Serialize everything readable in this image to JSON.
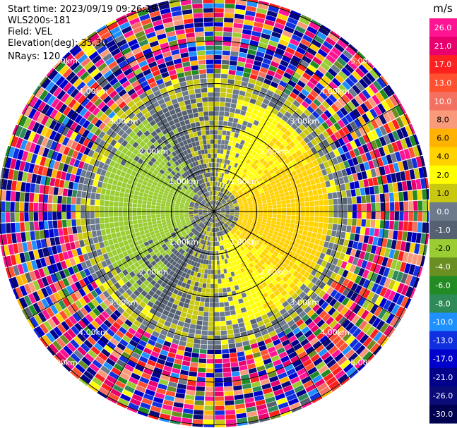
{
  "header": {
    "start_time": "Start time: 2023/09/19 09:26:29",
    "instrument": "WLS200s-181",
    "field": "Field: VEL",
    "elevation": "Elevation(deg): 35.30",
    "nrays": "NRays: 120"
  },
  "colorbar": {
    "unit": "m/s",
    "tick_labels": [
      "26.0",
      "21.0",
      "17.0",
      "13.0",
      "10.0",
      "8.0",
      "6.0",
      "4.0",
      "2.0",
      "1.0",
      "0.0",
      "-1.0",
      "-2.0",
      "-4.0",
      "-6.0",
      "-8.0",
      "-10.0",
      "-13.0",
      "-17.0",
      "-21.0",
      "-26.0",
      "-30.0"
    ],
    "colors": [
      "#ff1493",
      "#e8006c",
      "#ff2020",
      "#ff5030",
      "#f47060",
      "#f99a7a",
      "#ffb300",
      "#ffd200",
      "#ffff00",
      "#c8c810",
      "#6c7a8c",
      "#556070",
      "#9acd32",
      "#6b8e23",
      "#228b22",
      "#2e8b57",
      "#1e90ff",
      "#1030e0",
      "#0000cd",
      "#00008b",
      "#0a0a78",
      "#000050"
    ]
  },
  "chart_data": {
    "type": "heatmap",
    "projection": "polar PPI",
    "field": "VEL",
    "units": "m/s",
    "nrays": 120,
    "vmin": -30.0,
    "vmax": 26.0,
    "range_rings_km": [
      1.0,
      2.0,
      3.0,
      4.0,
      5.0
    ],
    "range_ring_labels": [
      "1.00km",
      "2.00km",
      "3.00km",
      "4.00km",
      "5.00km"
    ],
    "radial_lines_deg": [
      0,
      30,
      60,
      90,
      120,
      150,
      180,
      210,
      240,
      270,
      300,
      330
    ],
    "zones": [
      {
        "from_km": 0.0,
        "to_km": 0.5,
        "pattern": "mixed slate gray and olive near zero",
        "velocity_ms": [
          -1.5,
          0.5
        ]
      },
      {
        "from_km": 0.5,
        "to_km": 2.6,
        "pattern": "positive velocities (yellow, 1 to 3 m/s) to the east and south-east; negative velocities (green, -1 to -3 m/s) to the west and north",
        "velocity_ms": [
          -3.0,
          3.0
        ]
      },
      {
        "from_km": 2.6,
        "to_km": 3.2,
        "pattern": "slate gray near-zero band",
        "velocity_ms": [
          -1.0,
          1.0
        ]
      },
      {
        "from_km": 3.2,
        "to_km": 6.0,
        "pattern": "noise across the full colour scale",
        "velocity_ms": [
          -30.0,
          26.0
        ]
      }
    ]
  }
}
